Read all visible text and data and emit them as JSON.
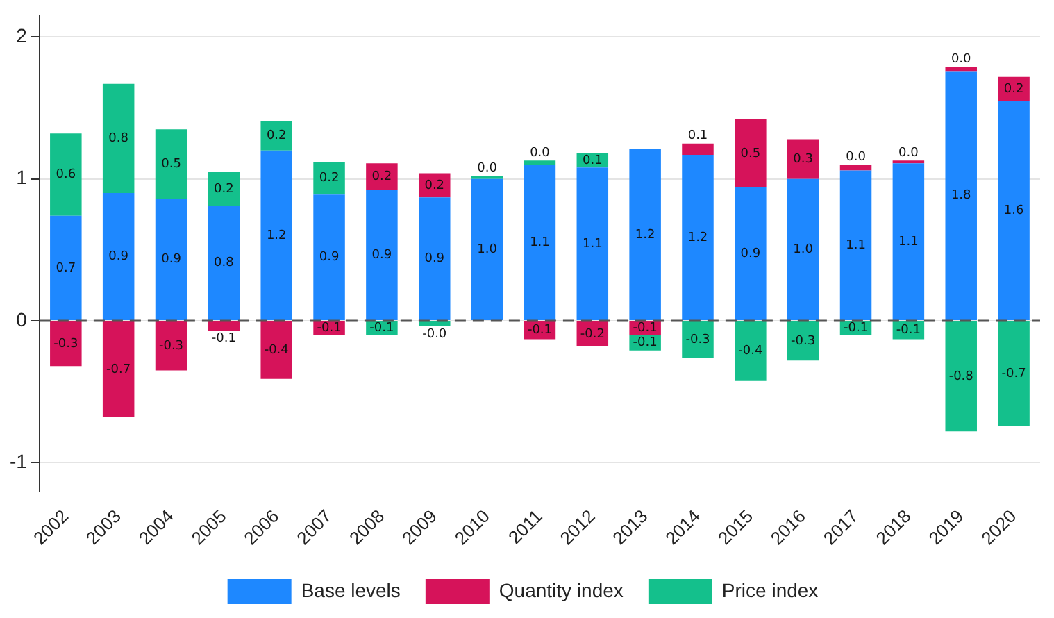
{
  "chart_data": {
    "type": "bar",
    "stacked": true,
    "categories": [
      "2002",
      "2003",
      "2004",
      "2005",
      "2006",
      "2007",
      "2008",
      "2009",
      "2010",
      "2011",
      "2012",
      "2013",
      "2014",
      "2015",
      "2016",
      "2017",
      "2018",
      "2019",
      "2020"
    ],
    "series": [
      {
        "name": "Base levels",
        "color": "#1e88ff",
        "values": [
          0.74,
          0.9,
          0.86,
          0.81,
          1.2,
          0.89,
          0.92,
          0.87,
          1.0,
          1.1,
          1.08,
          1.21,
          1.17,
          0.94,
          1.0,
          1.06,
          1.11,
          1.76,
          1.55
        ],
        "value_labels": [
          "0.7",
          "0.9",
          "0.9",
          "0.8",
          "1.2",
          "0.9",
          "0.9",
          "0.9",
          "1.0",
          "1.1",
          "1.1",
          "1.2",
          "1.2",
          "0.9",
          "1.0",
          "1.1",
          "1.1",
          "1.8",
          "1.6"
        ]
      },
      {
        "name": "Quantity index",
        "color": "#d6135a",
        "values": [
          -0.32,
          -0.68,
          -0.35,
          -0.07,
          -0.41,
          -0.1,
          0.19,
          0.17,
          null,
          -0.13,
          -0.18,
          -0.1,
          0.08,
          0.48,
          0.28,
          0.04,
          0.02,
          0.03,
          0.17
        ],
        "value_labels": [
          "-0.3",
          "-0.7",
          "-0.3",
          "-0.1",
          "-0.4",
          "-0.1",
          "0.2",
          "0.2",
          null,
          "-0.1",
          "-0.2",
          "-0.1",
          "0.1",
          "0.5",
          "0.3",
          "0.0",
          "0.0",
          "0.0",
          "0.2"
        ]
      },
      {
        "name": "Price index",
        "color": "#14c08c",
        "values": [
          0.58,
          0.77,
          0.49,
          0.24,
          0.21,
          0.23,
          -0.1,
          -0.04,
          0.02,
          0.03,
          0.1,
          -0.11,
          -0.26,
          -0.42,
          -0.28,
          -0.1,
          -0.13,
          -0.78,
          -0.74
        ],
        "value_labels": [
          "0.6",
          "0.8",
          "0.5",
          "0.2",
          "0.2",
          "0.2",
          "-0.1",
          "-0.0",
          "0.0",
          "0.0",
          "0.1",
          "-0.1",
          "-0.3",
          "-0.4",
          "-0.3",
          "-0.1",
          "-0.1",
          "-0.8",
          "-0.7"
        ]
      }
    ],
    "ylim": [
      -1.2,
      2.15
    ],
    "yticks": [
      -1,
      0,
      1,
      2
    ],
    "grid": "y",
    "legend": "bottom",
    "ref_lines": [
      {
        "axis": "y",
        "value": 0,
        "color": "#555555",
        "line_style": "dashed"
      }
    ]
  }
}
